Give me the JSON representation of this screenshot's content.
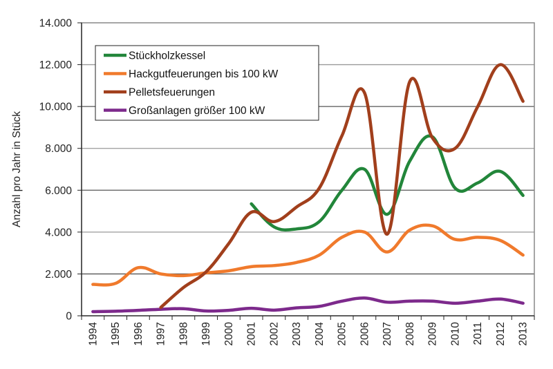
{
  "chart_data": {
    "type": "line",
    "title": "",
    "xlabel": "",
    "ylabel": "Anzahl pro Jahr in Stück",
    "ylim": [
      0,
      14000
    ],
    "yticks": [
      0,
      2000,
      4000,
      6000,
      8000,
      10000,
      12000,
      14000
    ],
    "ytick_labels": [
      "0",
      "2.000",
      "4.000",
      "6.000",
      "8.000",
      "10.000",
      "12.000",
      "14.000"
    ],
    "categories": [
      "1994",
      "1995",
      "1996",
      "1997",
      "1998",
      "1999",
      "2000",
      "2001",
      "2002",
      "2003",
      "2004",
      "2005",
      "2006",
      "2007",
      "2008",
      "2009",
      "2010",
      "2011",
      "2012",
      "2013"
    ],
    "grid": true,
    "legend_position": "top-left",
    "series": [
      {
        "name": "Stückholzkessel",
        "color": "#22863a",
        "values": [
          null,
          null,
          null,
          null,
          null,
          null,
          null,
          5350,
          4250,
          4150,
          4500,
          6000,
          7000,
          4850,
          7400,
          8550,
          6100,
          6350,
          6900,
          5750
        ]
      },
      {
        "name": "Hackgutfeuerungen bis 100 kW",
        "color": "#f07a2c",
        "values": [
          1500,
          1550,
          2300,
          2000,
          1920,
          2050,
          2150,
          2350,
          2400,
          2550,
          2900,
          3750,
          4000,
          3050,
          4100,
          4300,
          3650,
          3750,
          3600,
          2900
        ]
      },
      {
        "name": "Pelletsfeuerungen",
        "color": "#a13f1c",
        "values": [
          null,
          null,
          null,
          400,
          1350,
          2100,
          3450,
          4950,
          4500,
          5200,
          6100,
          8600,
          10650,
          3900,
          11200,
          8500,
          8000,
          10000,
          12000,
          10250
        ]
      },
      {
        "name": "Großanlagen größer 100 kW",
        "color": "#7d2a8c",
        "values": [
          200,
          220,
          260,
          310,
          340,
          230,
          260,
          360,
          270,
          380,
          450,
          700,
          850,
          650,
          700,
          700,
          600,
          700,
          800,
          600
        ]
      }
    ]
  }
}
